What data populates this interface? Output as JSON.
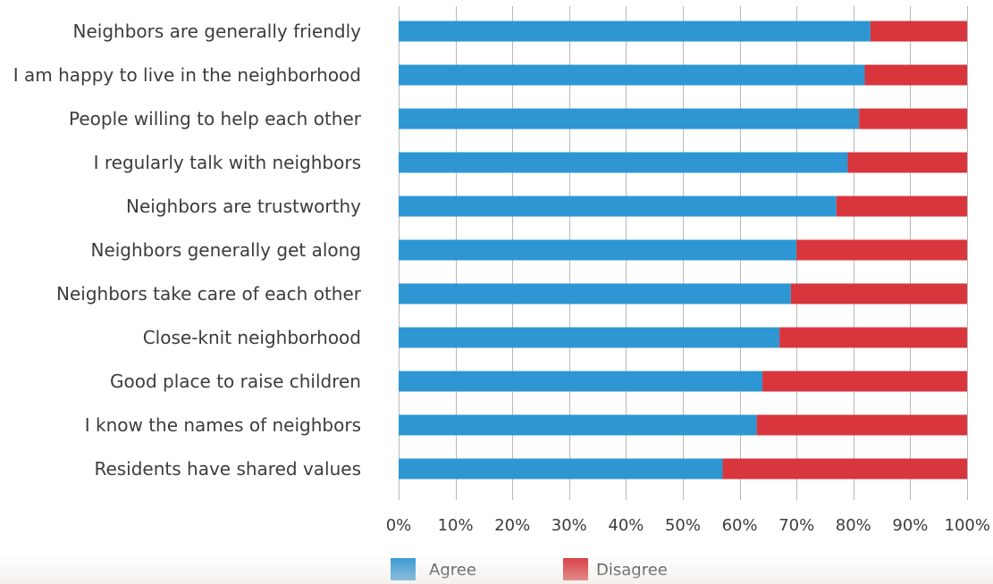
{
  "chart_data": {
    "type": "bar",
    "orientation": "horizontal",
    "stacked": true,
    "categories": [
      "Neighbors are generally friendly",
      "I am happy to live in the neighborhood",
      "People willing to help each other",
      "I regularly talk with neighbors",
      "Neighbors are trustworthy",
      "Neighbors generally get along",
      "Neighbors take care of each other",
      "Close-knit neighborhood",
      "Good place to raise children",
      "I know the names of neighbors",
      "Residents have shared values"
    ],
    "series": [
      {
        "name": "Agree",
        "color": "#2e96d3",
        "values": [
          83,
          82,
          81,
          79,
          77,
          70,
          69,
          67,
          64,
          63,
          57
        ]
      },
      {
        "name": "Disagree",
        "color": "#d8353c",
        "values": [
          17,
          18,
          19,
          21,
          23,
          30,
          31,
          33,
          36,
          37,
          43
        ]
      }
    ],
    "x_ticks": [
      "0%",
      "10%",
      "20%",
      "30%",
      "40%",
      "50%",
      "60%",
      "70%",
      "80%",
      "90%",
      "100%"
    ],
    "xlim": [
      0,
      100
    ],
    "grid": true,
    "legend_position": "bottom",
    "title": "",
    "xlabel": "",
    "ylabel": ""
  }
}
